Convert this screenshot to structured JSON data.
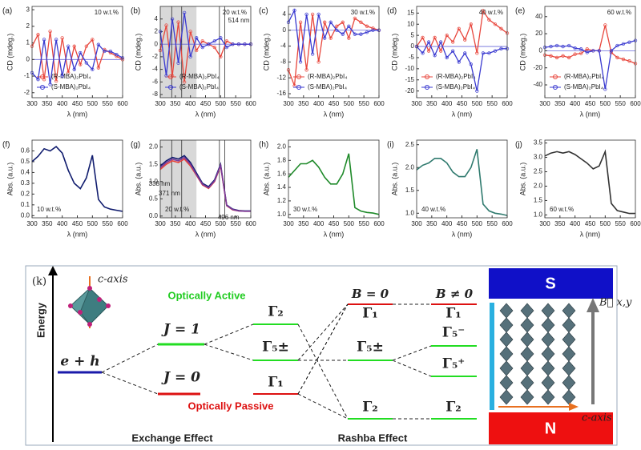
{
  "chart_data": [
    {
      "type": "line",
      "label": "(a)",
      "annotation": "10 w.t.%",
      "xlabel": "λ (nm)",
      "ylabel": "CD (mdeg.)",
      "x": [
        300,
        320,
        340,
        360,
        380,
        400,
        420,
        440,
        460,
        480,
        500,
        520,
        540,
        560,
        580,
        600
      ],
      "xlim": [
        300,
        600
      ],
      "xticks": [
        300,
        350,
        400,
        450,
        500,
        550,
        600
      ],
      "ylim": [
        -2.3,
        3.2
      ],
      "yticks": [
        -2,
        -1,
        0,
        1,
        2,
        3
      ],
      "series": [
        {
          "name": "(R-MBA)₂PbI₄",
          "color": "#e8463c",
          "values": [
            0.8,
            1.5,
            -1.2,
            1.7,
            -1.3,
            1.3,
            -0.8,
            0.8,
            -0.3,
            0.8,
            1.2,
            -0.5,
            0.6,
            0.4,
            0.2,
            0
          ]
        },
        {
          "name": "(S-MBA)₂PbI₄",
          "color": "#3a3ad0",
          "values": [
            -0.8,
            -1.2,
            1.2,
            -1.5,
            1.2,
            -1,
            0.8,
            -0.6,
            0.4,
            -0.2,
            -0.6,
            0.9,
            0.5,
            0.5,
            0.3,
            0.1
          ]
        }
      ]
    },
    {
      "type": "line",
      "label": "(b)",
      "annotation": "20 w.t.%",
      "xlabel": "λ (nm)",
      "ylabel": "CD (mdeg.)",
      "x": [
        300,
        320,
        340,
        360,
        380,
        400,
        420,
        440,
        460,
        480,
        500,
        520,
        540,
        560,
        580,
        600
      ],
      "xlim": [
        300,
        600
      ],
      "xticks": [
        300,
        350,
        400,
        450,
        500,
        550,
        600
      ],
      "ylim": [
        -8.5,
        6
      ],
      "yticks": [
        -8,
        -6,
        -4,
        -2,
        0,
        2,
        4
      ],
      "shade": [
        300,
        420
      ],
      "vlines": [
        338,
        371,
        496,
        {
          "value": 514,
          "label": "514 nm"
        }
      ],
      "series": [
        {
          "name": "(R-MBA)₂PbI₄",
          "color": "#e8463c",
          "values": [
            -1,
            3,
            -5,
            3.5,
            -6,
            2,
            -1,
            0.5,
            0,
            -0.5,
            -2,
            0.5,
            0,
            0,
            0,
            0
          ]
        },
        {
          "name": "(S-MBA)₂PbI₄",
          "color": "#3a3ad0",
          "values": [
            2,
            -5,
            4,
            -3,
            5,
            -2,
            1,
            -0.5,
            0,
            0.5,
            1,
            -0.5,
            0,
            0,
            0,
            0
          ]
        }
      ]
    },
    {
      "type": "line",
      "label": "(c)",
      "annotation": "30 w.t.%",
      "xlabel": "λ (nm)",
      "ylabel": "CD (mdeg.)",
      "x": [
        300,
        320,
        340,
        360,
        380,
        400,
        420,
        440,
        460,
        480,
        500,
        520,
        540,
        560,
        580,
        600
      ],
      "xlim": [
        300,
        600
      ],
      "xticks": [
        300,
        350,
        400,
        450,
        500,
        550,
        600
      ],
      "ylim": [
        -17,
        6
      ],
      "yticks": [
        -16,
        -12,
        -8,
        -4,
        0,
        4
      ],
      "series": [
        {
          "name": "(R-MBA)₂PbI₄",
          "color": "#e8463c",
          "values": [
            -10,
            -14,
            2,
            -10,
            4,
            -8,
            2,
            -2,
            1,
            2,
            -2,
            3,
            2,
            1,
            0.5,
            0
          ]
        },
        {
          "name": "(S-MBA)₂PbI₄",
          "color": "#3a3ad0",
          "values": [
            2,
            5,
            -8,
            4,
            -6,
            4,
            -2,
            2,
            0,
            -1,
            1,
            -1,
            -1,
            -0.5,
            0,
            0
          ]
        }
      ]
    },
    {
      "type": "line",
      "label": "(d)",
      "annotation": "40 w.t.%",
      "xlabel": "λ (nm)",
      "ylabel": "CD (mdeg.)",
      "x": [
        300,
        320,
        340,
        360,
        380,
        400,
        420,
        440,
        460,
        480,
        500,
        520,
        540,
        560,
        580,
        600
      ],
      "xlim": [
        300,
        600
      ],
      "xticks": [
        300,
        350,
        400,
        450,
        500,
        550,
        600
      ],
      "ylim": [
        -23,
        18
      ],
      "yticks": [
        -20,
        -15,
        -10,
        -5,
        0,
        5,
        10,
        15
      ],
      "series": [
        {
          "name": "(R-MBA)₂PbI₄",
          "color": "#e8463c",
          "values": [
            0,
            4,
            -2,
            4,
            -2,
            5,
            2,
            8,
            3,
            10,
            -3,
            16,
            12,
            10,
            8,
            6
          ]
        },
        {
          "name": "(S-MBA)₂PbI₄",
          "color": "#3a3ad0",
          "values": [
            0,
            -3,
            2,
            -4,
            2,
            -5,
            -2,
            -7,
            -3,
            -8,
            -20,
            -3,
            -3,
            -2,
            -1,
            -1
          ]
        }
      ]
    },
    {
      "type": "line",
      "label": "(e)",
      "annotation": "60 w.t.%",
      "xlabel": "λ (nm)",
      "ylabel": "CD (mdeg.)",
      "x": [
        300,
        320,
        340,
        360,
        380,
        400,
        420,
        440,
        460,
        480,
        500,
        520,
        540,
        560,
        580,
        600
      ],
      "xlim": [
        300,
        600
      ],
      "xticks": [
        300,
        350,
        400,
        450,
        500,
        550,
        600
      ],
      "ylim": [
        -55,
        52
      ],
      "yticks": [
        -40,
        -20,
        0,
        20,
        40
      ],
      "series": [
        {
          "name": "(R-MBA)₂PbI₄",
          "color": "#e8463c",
          "values": [
            -5,
            -6,
            -8,
            -6,
            -8,
            -4,
            -3,
            2,
            0,
            0,
            30,
            -2,
            -8,
            -10,
            -12,
            -15
          ]
        },
        {
          "name": "(S-MBA)₂PbI₄",
          "color": "#3a3ad0",
          "values": [
            4,
            5,
            6,
            5,
            6,
            3,
            2,
            -2,
            0,
            0,
            -45,
            0,
            6,
            8,
            10,
            12
          ]
        }
      ]
    },
    {
      "type": "line",
      "label": "(f)",
      "annotation": "10 w.t.%",
      "xlabel": "λ (nm)",
      "ylabel": "Abs. (a.u.)",
      "x": [
        300,
        320,
        340,
        360,
        380,
        400,
        420,
        440,
        460,
        480,
        500,
        520,
        540,
        560,
        580,
        600
      ],
      "xlim": [
        300,
        600
      ],
      "xticks": [
        300,
        350,
        400,
        450,
        500,
        550,
        600
      ],
      "ylim": [
        -0.02,
        0.7
      ],
      "yticks": [
        {
          "value": 0,
          "label": "0.0"
        },
        0.1,
        0.2,
        0.3,
        0.4,
        0.5,
        0.6
      ],
      "series": [
        {
          "color": "#101c6e",
          "values": [
            0.5,
            0.55,
            0.62,
            0.6,
            0.64,
            0.58,
            0.42,
            0.3,
            0.25,
            0.35,
            0.56,
            0.15,
            0.08,
            0.06,
            0.05,
            0.04
          ]
        }
      ]
    },
    {
      "type": "line",
      "label": "(g)",
      "annotation": "20 w.t.%",
      "xlabel": "λ (nm)",
      "ylabel": "Abs. (a.u.)",
      "x": [
        300,
        320,
        340,
        360,
        380,
        400,
        420,
        440,
        460,
        480,
        500,
        520,
        540,
        560,
        580,
        600
      ],
      "xlim": [
        300,
        600
      ],
      "xticks": [
        300,
        350,
        400,
        450,
        500,
        550,
        600
      ],
      "ylim": [
        -0.05,
        2.2
      ],
      "yticks": [
        {
          "value": 0,
          "label": "0.0"
        },
        0.5,
        {
          "value": 1,
          "label": "1.0"
        },
        1.5,
        {
          "value": 2,
          "label": "2.0"
        }
      ],
      "shade": [
        300,
        420
      ],
      "vlines": [
        {
          "value": 338,
          "label": "338 nm"
        },
        {
          "value": 371,
          "label": "371 nm"
        },
        {
          "value": 496,
          "label": "496 nm"
        },
        514
      ],
      "series": [
        {
          "color": "#101c6e",
          "values": [
            1.45,
            1.6,
            1.7,
            1.65,
            1.75,
            1.55,
            1.25,
            0.95,
            0.85,
            1.05,
            1.5,
            0.32,
            0.2,
            0.16,
            0.15,
            0.15
          ]
        },
        {
          "color": "#e8463c",
          "values": [
            1.35,
            1.5,
            1.6,
            1.55,
            1.65,
            1.45,
            1.18,
            0.9,
            0.8,
            1.0,
            1.45,
            0.3,
            0.18,
            0.15,
            0.14,
            0.14
          ]
        },
        {
          "color": "#7a3a9a",
          "values": [
            1.4,
            1.55,
            1.65,
            1.6,
            1.7,
            1.5,
            1.2,
            0.92,
            0.82,
            1.02,
            1.47,
            0.31,
            0.19,
            0.15,
            0.14,
            0.14
          ]
        }
      ]
    },
    {
      "type": "line",
      "label": "(h)",
      "annotation": "30 w.t.%",
      "xlabel": "λ (nm)",
      "ylabel": "Abs. (a.u.)",
      "x": [
        300,
        320,
        340,
        360,
        380,
        400,
        420,
        440,
        460,
        480,
        500,
        520,
        540,
        560,
        580,
        600
      ],
      "xlim": [
        300,
        600
      ],
      "xticks": [
        300,
        350,
        400,
        450,
        500,
        550,
        600
      ],
      "ylim": [
        0.95,
        2.1
      ],
      "yticks": [
        {
          "value": 1,
          "label": "1.0"
        },
        1.2,
        1.4,
        1.6,
        1.8,
        {
          "value": 2,
          "label": "2.0"
        }
      ],
      "series": [
        {
          "color": "#1f8a2a",
          "values": [
            1.55,
            1.65,
            1.75,
            1.75,
            1.8,
            1.7,
            1.55,
            1.45,
            1.45,
            1.6,
            1.9,
            1.1,
            1.05,
            1.03,
            1.02,
            1.0
          ]
        }
      ]
    },
    {
      "type": "line",
      "label": "(i)",
      "annotation": "40 w.t.%",
      "xlabel": "λ (nm)",
      "ylabel": "Abs. (a.u.)",
      "x": [
        300,
        320,
        340,
        360,
        380,
        400,
        420,
        440,
        460,
        480,
        500,
        520,
        540,
        560,
        580,
        600
      ],
      "xlim": [
        300,
        600
      ],
      "xticks": [
        300,
        350,
        400,
        450,
        500,
        550,
        600
      ],
      "ylim": [
        0.9,
        2.6
      ],
      "yticks": [
        {
          "value": 1,
          "label": "1.0"
        },
        1.5,
        {
          "value": 2,
          "label": "2.0"
        },
        2.5
      ],
      "series": [
        {
          "color": "#2f7a6e",
          "values": [
            1.95,
            2.05,
            2.1,
            2.2,
            2.2,
            2.1,
            1.9,
            1.8,
            1.8,
            2.0,
            2.4,
            1.2,
            1.05,
            1.0,
            0.98,
            0.95
          ]
        }
      ]
    },
    {
      "type": "line",
      "label": "(j)",
      "annotation": "60 w.t.%",
      "xlabel": "λ (nm)",
      "ylabel": "Abs. (a.u.)",
      "x": [
        300,
        320,
        340,
        360,
        380,
        400,
        420,
        440,
        460,
        480,
        500,
        520,
        540,
        560,
        580,
        600
      ],
      "xlim": [
        300,
        600
      ],
      "xticks": [
        300,
        350,
        400,
        450,
        500,
        550,
        600
      ],
      "ylim": [
        0.9,
        3.6
      ],
      "yticks": [
        {
          "value": 1,
          "label": "1.0"
        },
        1.5,
        {
          "value": 2,
          "label": "2.0"
        },
        2.5,
        {
          "value": 3,
          "label": "3.0"
        },
        3.5
      ],
      "series": [
        {
          "color": "#333333",
          "values": [
            3.05,
            3.15,
            3.2,
            3.15,
            3.2,
            3.1,
            2.95,
            2.8,
            2.6,
            2.7,
            3.2,
            1.4,
            1.15,
            1.1,
            1.05,
            1.05
          ]
        }
      ]
    }
  ],
  "diagram": {
    "label": "(k)",
    "energy": "Energy",
    "c_axis": "c-axis",
    "eh": "e + h",
    "j1": "J = 1",
    "j0": "J = 0",
    "active": "Optically Active",
    "passive": "Optically Passive",
    "exchange": {
      "g2": "Γ₂",
      "g5": "Γ₅±",
      "g1": "Γ₁"
    },
    "b0": {
      "title": "B = 0",
      "g1": "Γ₁",
      "g5": "Γ₅±",
      "g2": "Γ₂"
    },
    "b1": {
      "title": "B ≠ 0",
      "g1": "Γ₁",
      "g5m": "Γ₅⁻",
      "g5p": "Γ₅⁺",
      "g2": "Γ₂"
    },
    "magnet": {
      "s": "S",
      "n": "N",
      "field": "B⃗ x,y",
      "axis": "c-axis"
    },
    "exchange_effect": "Exchange Effect",
    "rashba_effect": "Rashba Effect"
  }
}
